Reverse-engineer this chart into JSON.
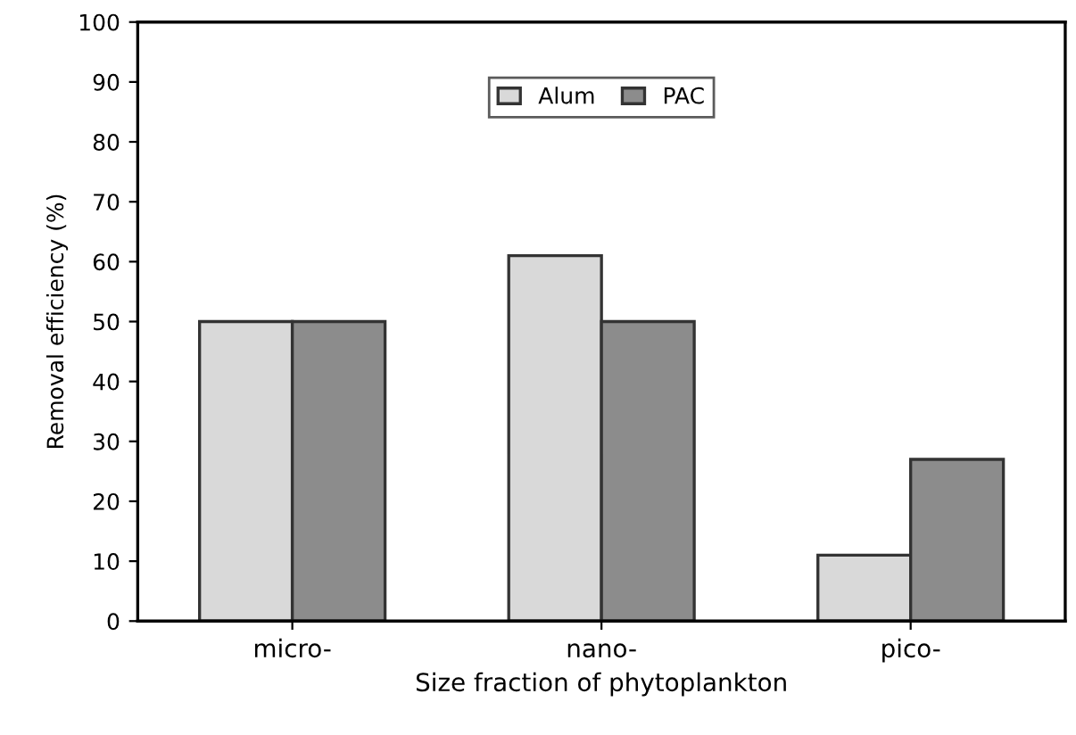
{
  "chart_data": {
    "type": "bar",
    "xlabel": "Size fraction of phytoplankton",
    "ylabel": "Removal efficiency (%)",
    "categories": [
      "micro-",
      "nano-",
      "pico-"
    ],
    "series": [
      {
        "name": "Alum",
        "color": "#d9d9d9",
        "values": [
          50,
          61,
          11
        ]
      },
      {
        "name": "PAC",
        "color": "#8c8c8c",
        "values": [
          50,
          50,
          27
        ]
      }
    ],
    "ylim": [
      0,
      100
    ],
    "yticks": [
      0,
      10,
      20,
      30,
      40,
      50,
      60,
      70,
      80,
      90,
      100
    ],
    "grid": false,
    "legend": "top"
  }
}
